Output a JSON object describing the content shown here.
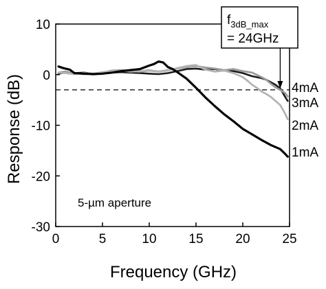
{
  "chart_data": {
    "type": "line",
    "xlabel": "Frequency (GHz)",
    "ylabel": "Response (dB)",
    "xlim": [
      0,
      25
    ],
    "ylim": [
      -30,
      10
    ],
    "xticks": [
      0,
      5,
      10,
      15,
      20,
      25
    ],
    "yticks": [
      10,
      0,
      -10,
      -20,
      -30
    ],
    "grid": false,
    "reference_line": {
      "y": -3,
      "style": "dashed"
    },
    "inset_text": "5-µm aperture",
    "annotation": {
      "line1_main": "f",
      "line1_sub": "3dB_max",
      "line2": "= 24GHz",
      "arrow_x": 24
    },
    "series": [
      {
        "name": "4mA",
        "color": "#1a1a1a",
        "x": [
          0.3,
          1,
          2,
          3,
          4,
          5,
          6,
          7,
          8,
          9,
          10,
          11,
          12,
          13,
          14,
          15,
          16,
          17,
          18,
          19,
          20,
          21,
          22,
          22.5,
          23,
          23.5,
          24,
          24.5,
          24.8
        ],
        "y": [
          0.2,
          0.4,
          0.3,
          0.4,
          0.2,
          0.3,
          0.4,
          0.5,
          0.4,
          0.3,
          0.2,
          0.1,
          0.3,
          0.7,
          1.1,
          1.2,
          1.0,
          1.1,
          0.8,
          0.7,
          0.3,
          -0.3,
          -0.7,
          -1.0,
          -1.5,
          -2.0,
          -2.7,
          -4.3,
          -5.2
        ]
      },
      {
        "name": "3mA",
        "color": "#9a9a9a",
        "x": [
          0.3,
          1,
          2,
          3,
          4,
          5,
          6,
          7,
          8,
          9,
          10,
          11,
          12,
          13,
          14,
          15,
          16,
          17,
          18,
          19,
          20,
          21,
          22,
          22.5,
          23,
          23.5,
          24,
          24.5,
          24.8
        ],
        "y": [
          0.4,
          0.6,
          0.3,
          0.1,
          0.2,
          0.4,
          0.8,
          0.9,
          0.7,
          0.6,
          0.8,
          0.6,
          0.9,
          1.2,
          1.5,
          1.7,
          1.4,
          1.2,
          0.9,
          1.1,
          0.7,
          0.4,
          -0.5,
          -1.0,
          -1.8,
          -2.5,
          -3.0,
          -3.6,
          -4.3
        ]
      },
      {
        "name": "2mA",
        "color": "#b4b4b4",
        "x": [
          0.3,
          1,
          2,
          3,
          4,
          5,
          6,
          7,
          8,
          9,
          10,
          11,
          12,
          13,
          14,
          15,
          16,
          17,
          18,
          19,
          20,
          20.5,
          21,
          21.5,
          22,
          22.5,
          23,
          23.5,
          24,
          24.5,
          24.8
        ],
        "y": [
          0.4,
          0.3,
          0.1,
          0.3,
          0.2,
          0.5,
          0.7,
          0.8,
          0.6,
          0.7,
          0.9,
          0.6,
          0.8,
          1.3,
          1.7,
          1.9,
          1.0,
          0.6,
          0.8,
          0.3,
          -0.5,
          -1.2,
          -2.0,
          -2.6,
          -3.3,
          -3.8,
          -4.4,
          -5.2,
          -6.0,
          -7.6,
          -8.8
        ]
      },
      {
        "name": "1mA",
        "color": "#000000",
        "x": [
          0.3,
          0.8,
          1.5,
          2,
          3,
          4,
          5,
          6,
          7,
          8,
          9,
          10,
          10.5,
          11,
          11.5,
          12,
          12.5,
          13,
          14,
          15,
          16,
          17,
          18,
          19,
          20,
          21,
          22,
          23,
          24,
          24.5,
          24.8
        ],
        "y": [
          1.6,
          1.3,
          1.0,
          0.3,
          0.2,
          0.1,
          0.2,
          0.4,
          0.7,
          0.9,
          1.1,
          1.8,
          2.1,
          2.6,
          2.4,
          1.5,
          1.1,
          0.5,
          -0.8,
          -2.6,
          -4.5,
          -6.2,
          -7.8,
          -9.2,
          -10.7,
          -11.8,
          -12.9,
          -13.9,
          -14.7,
          -15.6,
          -16.2
        ]
      }
    ]
  }
}
